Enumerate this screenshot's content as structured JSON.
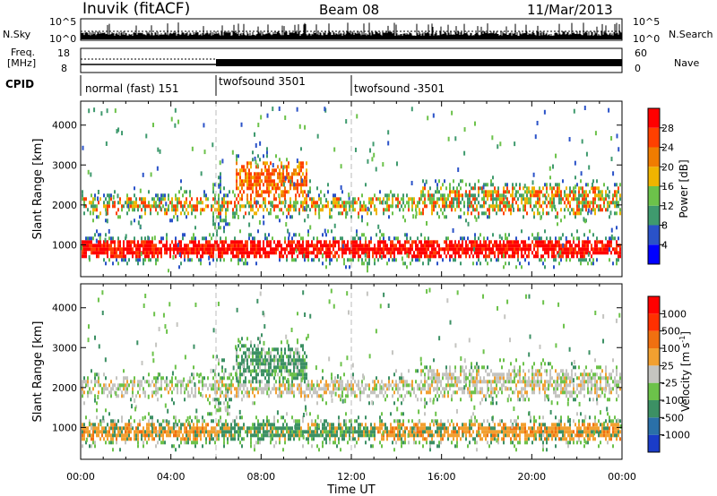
{
  "header": {
    "station": "Inuvik (fitACF)",
    "beam": "Beam 08",
    "date": "11/Mar/2013"
  },
  "noise_panel": {
    "left_label": "N.Sky",
    "right_label": "N.Search",
    "left_ticks": [
      "10^5",
      "10^0"
    ],
    "right_ticks": [
      "10^5",
      "10^0"
    ]
  },
  "freq_panel": {
    "left_label_top": "Freq.",
    "left_label_bottom": "[MHz]",
    "right_label": "Nave",
    "left_ticks": [
      "18",
      "8"
    ],
    "right_ticks": [
      "60",
      "0"
    ]
  },
  "cpid_panel": {
    "label": "CPID",
    "segments": [
      {
        "name": "normal (fast) 151",
        "start_h": 0,
        "end_h": 6
      },
      {
        "name": "twofsound 3501",
        "start_h": 6,
        "end_h": 12
      },
      {
        "name": "twofsound -3501",
        "start_h": 12,
        "end_h": 24
      }
    ]
  },
  "chart_data": [
    {
      "type": "heatmap",
      "quantity": "power",
      "ylabel": "Slant Range [km]",
      "ylim": [
        200,
        4600
      ],
      "yticks": [
        "1000",
        "2000",
        "3000",
        "4000"
      ],
      "xlim": [
        0,
        24
      ],
      "colorbar": {
        "title": "Power [dB]",
        "ticks": [
          "4",
          "8",
          "12",
          "16",
          "20",
          "24",
          "28"
        ],
        "colors": [
          "#0000ff",
          "#2a52c8",
          "#3f9a6e",
          "#6cc24a",
          "#f0b400",
          "#f07c00",
          "#ff4000",
          "#ff0000"
        ]
      }
    },
    {
      "type": "heatmap",
      "quantity": "velocity",
      "ylabel": "Slant Range [km]",
      "ylim": [
        200,
        4600
      ],
      "yticks": [
        "1000",
        "2000",
        "3000",
        "4000"
      ],
      "xlabel": "Time UT",
      "xticks": [
        "00:00",
        "04:00",
        "08:00",
        "12:00",
        "16:00",
        "20:00",
        "00:00"
      ],
      "xlim": [
        0,
        24
      ],
      "colorbar": {
        "title": "Velocity [m s",
        "title_sup": "-1",
        "title_end": "]",
        "ticks": [
          "1000",
          "500",
          "100",
          "25",
          "-25",
          "-100",
          "-500",
          "-1000"
        ],
        "colors": [
          "#1a3cc8",
          "#2a70a8",
          "#3c9064",
          "#6cc24a",
          "#c4c4c0",
          "#f2a030",
          "#f07010",
          "#ff3000",
          "#ff0000"
        ]
      }
    }
  ]
}
